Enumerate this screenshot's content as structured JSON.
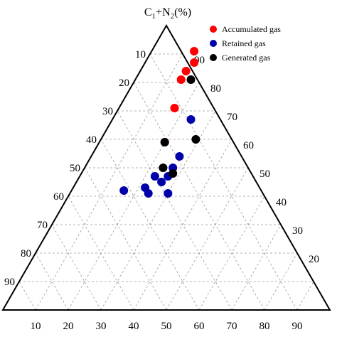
{
  "chart_data": {
    "type": "scatter",
    "subtype": "ternary",
    "title": "",
    "top_apex_label": "C1+N2(%)",
    "top_apex_parts": {
      "base": "C",
      "sub1": "1",
      "mid": "+N",
      "sub2": "2",
      "tail": "(%)"
    },
    "grid": true,
    "grid_step": 10,
    "legend_position": "top-right",
    "left_edge_ticks": [
      "10",
      "20",
      "30",
      "40",
      "50",
      "60",
      "70",
      "80",
      "90"
    ],
    "right_edge_ticks": [
      "90",
      "80",
      "70",
      "60",
      "50",
      "40",
      "30",
      "20"
    ],
    "bottom_edge_ticks": [
      "10",
      "20",
      "30",
      "40",
      "50",
      "60",
      "70",
      "80",
      "90"
    ],
    "series": [
      {
        "name": "Accumulated gas",
        "color": "#ff0000",
        "points": [
          {
            "top": 91,
            "bottom": 13
          },
          {
            "top": 87,
            "bottom": 15
          },
          {
            "top": 84,
            "bottom": 14
          },
          {
            "top": 81,
            "bottom": 14
          },
          {
            "top": 71,
            "bottom": 17
          },
          {
            "top": 59,
            "bottom": 20
          }
        ]
      },
      {
        "name": "Retained gas",
        "color": "#0000aa",
        "points": [
          {
            "top": 67,
            "bottom": 24
          },
          {
            "top": 54,
            "bottom": 27
          },
          {
            "top": 50,
            "bottom": 27
          },
          {
            "top": 47,
            "bottom": 27
          },
          {
            "top": 47,
            "bottom": 23
          },
          {
            "top": 45,
            "bottom": 26
          },
          {
            "top": 43,
            "bottom": 22
          },
          {
            "top": 42,
            "bottom": 16
          },
          {
            "top": 41,
            "bottom": 24
          },
          {
            "top": 41,
            "bottom": 30
          }
        ]
      },
      {
        "name": "Generated gas",
        "color": "#000000",
        "points": [
          {
            "top": 81,
            "bottom": 17
          },
          {
            "top": 60,
            "bottom": 29
          },
          {
            "top": 59,
            "bottom": 20
          },
          {
            "top": 50,
            "bottom": 24
          },
          {
            "top": 48,
            "bottom": 28
          }
        ]
      }
    ]
  }
}
